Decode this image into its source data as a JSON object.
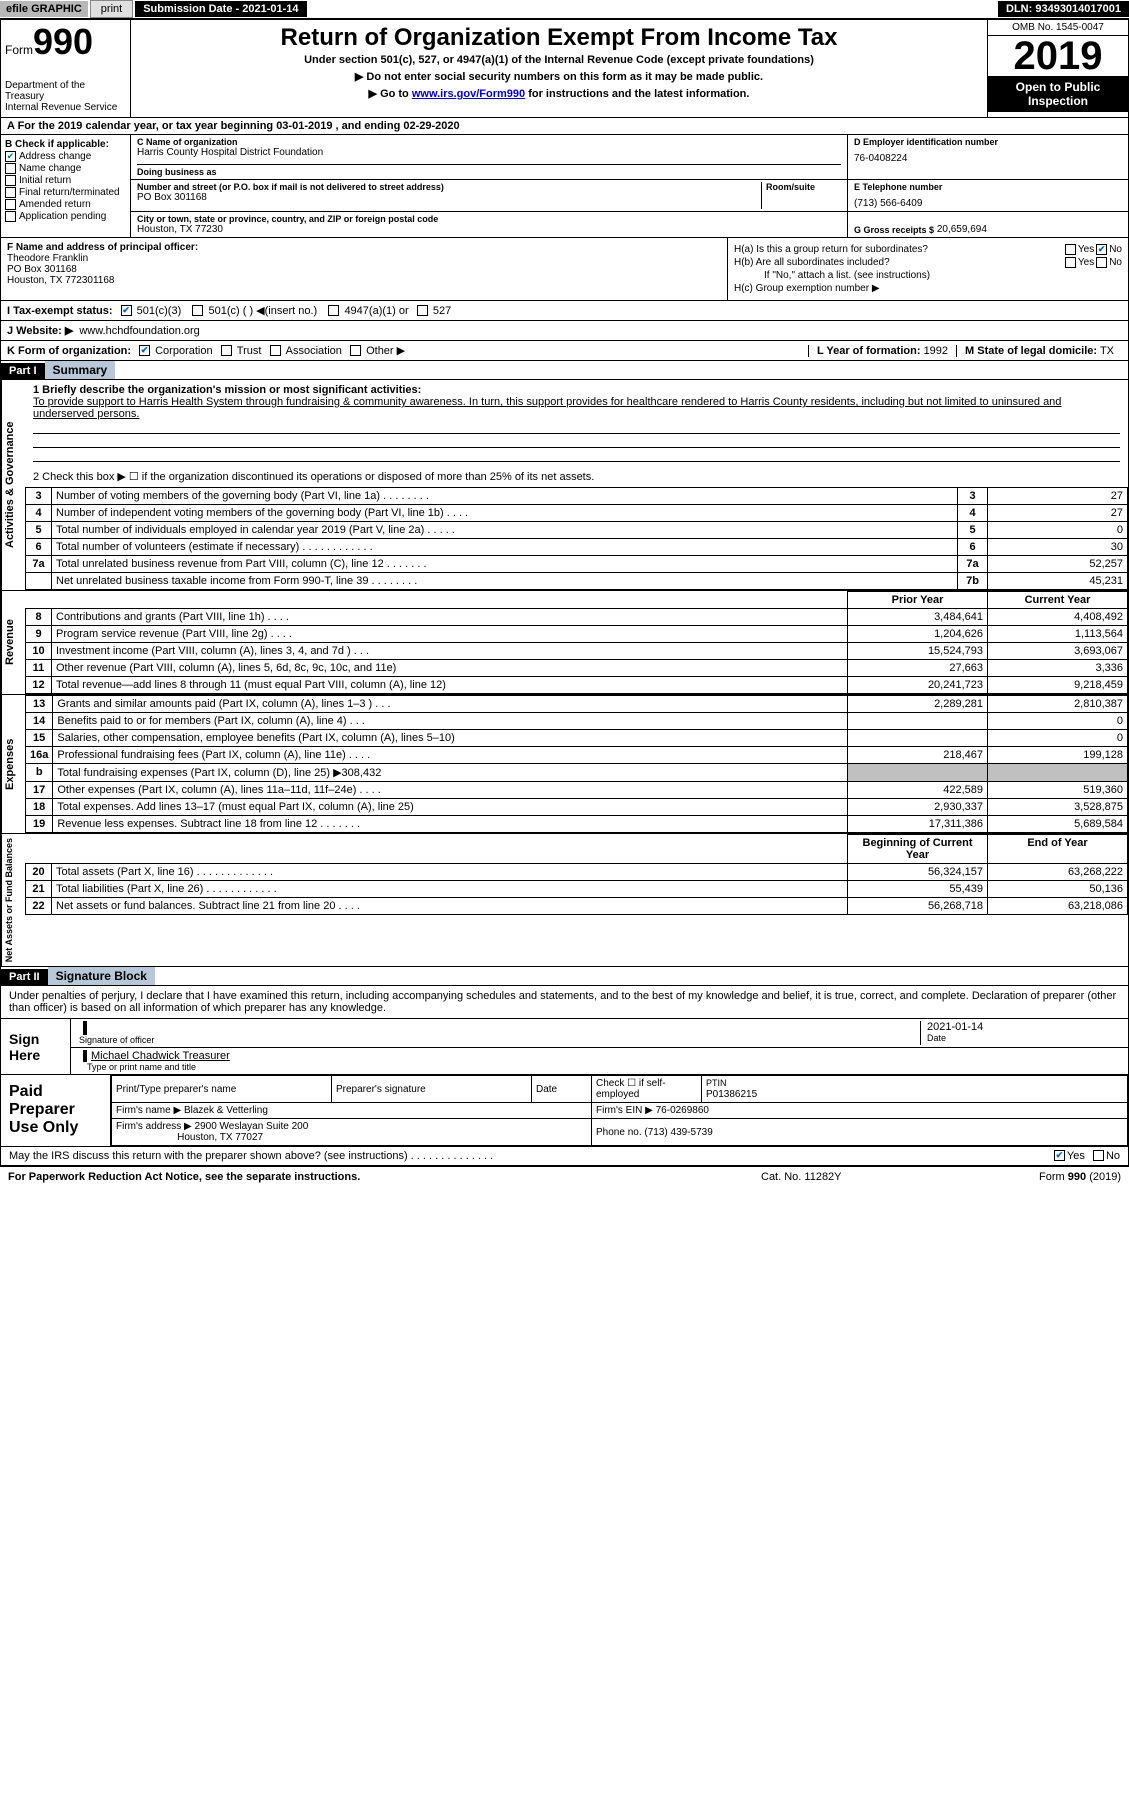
{
  "topbar": {
    "efile": "efile GRAPHIC",
    "print": "print",
    "subdate_label": "Submission Date - 2021-01-14",
    "dln": "DLN: 93493014017001"
  },
  "header": {
    "form_label": "Form",
    "form_num": "990",
    "dept": "Department of the Treasury\nInternal Revenue Service",
    "title": "Return of Organization Exempt From Income Tax",
    "subtitle": "Under section 501(c), 527, or 4947(a)(1) of the Internal Revenue Code (except private foundations)",
    "instr1": "▶ Do not enter social security numbers on this form as it may be made public.",
    "instr2_pre": "▶ Go to ",
    "instr2_link": "www.irs.gov/Form990",
    "instr2_post": " for instructions and the latest information.",
    "omb": "OMB No. 1545-0047",
    "year": "2019",
    "open": "Open to Public Inspection"
  },
  "period": "A For the 2019 calendar year, or tax year beginning 03-01-2019   , and ending 02-29-2020",
  "section_b": {
    "label": "B Check if applicable:",
    "items": [
      {
        "checked": true,
        "text": "Address change"
      },
      {
        "checked": false,
        "text": "Name change"
      },
      {
        "checked": false,
        "text": "Initial return"
      },
      {
        "checked": false,
        "text": "Final return/terminated"
      },
      {
        "checked": false,
        "text": "Amended return"
      },
      {
        "checked": false,
        "text": "Application pending"
      }
    ]
  },
  "section_c": {
    "name_label": "C Name of organization",
    "name": "Harris County Hospital District Foundation",
    "dba_label": "Doing business as",
    "dba": "",
    "addr_label": "Number and street (or P.O. box if mail is not delivered to street address)",
    "room_label": "Room/suite",
    "addr": "PO Box 301168",
    "city_label": "City or town, state or province, country, and ZIP or foreign postal code",
    "city": "Houston, TX  77230"
  },
  "section_d": {
    "label": "D Employer identification number",
    "value": "76-0408224"
  },
  "section_e": {
    "label": "E Telephone number",
    "value": "(713) 566-6409"
  },
  "section_g": {
    "label": "G Gross receipts $",
    "value": "20,659,694"
  },
  "section_f": {
    "label": "F  Name and address of principal officer:",
    "name": "Theodore Franklin",
    "addr1": "PO Box 301168",
    "addr2": "Houston, TX  772301168"
  },
  "section_h": {
    "ha": "H(a)  Is this a group return for subordinates?",
    "ha_no": true,
    "hb": "H(b)  Are all subordinates included?",
    "hb_note": "If \"No,\" attach a list. (see instructions)",
    "hc": "H(c)  Group exemption number ▶"
  },
  "tax_exempt": {
    "label": "I   Tax-exempt status:",
    "c3_checked": true,
    "opts": [
      "501(c)(3)",
      "501(c) (  ) ◀(insert no.)",
      "4947(a)(1) or",
      "527"
    ]
  },
  "website": {
    "label": "J   Website: ▶",
    "value": "www.hchdfoundation.org"
  },
  "section_k": {
    "label": "K Form of organization:",
    "corp_checked": true,
    "opts": [
      "Corporation",
      "Trust",
      "Association",
      "Other ▶"
    ]
  },
  "section_l": {
    "label": "L Year of formation:",
    "value": "1992"
  },
  "section_m": {
    "label": "M State of legal domicile:",
    "value": "TX"
  },
  "part1": {
    "hdr": "Part I",
    "title": "Summary",
    "line1_label": "1  Briefly describe the organization's mission or most significant activities:",
    "mission": "To provide support to Harris Health System through fundraising & community awareness. In turn, this support provides for healthcare rendered to Harris County residents, including but not limited to uninsured and underserved persons.",
    "line2": "2   Check this box ▶ ☐ if the organization discontinued its operations or disposed of more than 25% of its net assets.",
    "side_gov": "Activities & Governance",
    "side_rev": "Revenue",
    "side_exp": "Expenses",
    "side_net": "Net Assets or Fund Balances",
    "col_prior": "Prior Year",
    "col_current": "Current Year",
    "col_begin": "Beginning of Current Year",
    "col_end": "End of Year",
    "gov_lines": [
      {
        "n": "3",
        "text": "Number of voting members of the governing body (Part VI, line 1a)  .   .   .   .   .   .   .   .",
        "box": "3",
        "val": "27"
      },
      {
        "n": "4",
        "text": "Number of independent voting members of the governing body (Part VI, line 1b)  .   .   .   .",
        "box": "4",
        "val": "27"
      },
      {
        "n": "5",
        "text": "Total number of individuals employed in calendar year 2019 (Part V, line 2a)  .   .   .   .   .",
        "box": "5",
        "val": "0"
      },
      {
        "n": "6",
        "text": "Total number of volunteers (estimate if necessary)   .   .   .   .   .   .   .   .   .   .   .   .",
        "box": "6",
        "val": "30"
      },
      {
        "n": "7a",
        "text": "Total unrelated business revenue from Part VIII, column (C), line 12  .   .   .   .   .   .   .",
        "box": "7a",
        "val": "52,257"
      },
      {
        "n": "",
        "text": "Net unrelated business taxable income from Form 990-T, line 39  .   .   .   .   .   .   .   .",
        "box": "7b",
        "val": "45,231"
      }
    ],
    "rev_lines": [
      {
        "n": "8",
        "text": "Contributions and grants (Part VIII, line 1h)  .   .   .   .",
        "prior": "3,484,641",
        "curr": "4,408,492"
      },
      {
        "n": "9",
        "text": "Program service revenue (Part VIII, line 2g)   .   .   .   .",
        "prior": "1,204,626",
        "curr": "1,113,564"
      },
      {
        "n": "10",
        "text": "Investment income (Part VIII, column (A), lines 3, 4, and 7d )   .   .   .",
        "prior": "15,524,793",
        "curr": "3,693,067"
      },
      {
        "n": "11",
        "text": "Other revenue (Part VIII, column (A), lines 5, 6d, 8c, 9c, 10c, and 11e)",
        "prior": "27,663",
        "curr": "3,336"
      },
      {
        "n": "12",
        "text": "Total revenue—add lines 8 through 11 (must equal Part VIII, column (A), line 12)",
        "prior": "20,241,723",
        "curr": "9,218,459"
      }
    ],
    "exp_lines": [
      {
        "n": "13",
        "text": "Grants and similar amounts paid (Part IX, column (A), lines 1–3 )  .   .   .",
        "prior": "2,289,281",
        "curr": "2,810,387"
      },
      {
        "n": "14",
        "text": "Benefits paid to or for members (Part IX, column (A), line 4)  .   .   .",
        "prior": "",
        "curr": "0"
      },
      {
        "n": "15",
        "text": "Salaries, other compensation, employee benefits (Part IX, column (A), lines 5–10)",
        "prior": "",
        "curr": "0"
      },
      {
        "n": "16a",
        "text": "Professional fundraising fees (Part IX, column (A), line 11e)  .   .   .   .",
        "prior": "218,467",
        "curr": "199,128"
      },
      {
        "n": "b",
        "text": "Total fundraising expenses (Part IX, column (D), line 25) ▶308,432",
        "prior": "shaded",
        "curr": "shaded"
      },
      {
        "n": "17",
        "text": "Other expenses (Part IX, column (A), lines 11a–11d, 11f–24e)  .   .   .   .",
        "prior": "422,589",
        "curr": "519,360"
      },
      {
        "n": "18",
        "text": "Total expenses. Add lines 13–17 (must equal Part IX, column (A), line 25)",
        "prior": "2,930,337",
        "curr": "3,528,875"
      },
      {
        "n": "19",
        "text": "Revenue less expenses. Subtract line 18 from line 12  .   .   .   .   .   .   .",
        "prior": "17,311,386",
        "curr": "5,689,584"
      }
    ],
    "net_lines": [
      {
        "n": "20",
        "text": "Total assets (Part X, line 16)  .   .   .   .   .   .   .   .   .   .   .   .   .",
        "prior": "56,324,157",
        "curr": "63,268,222"
      },
      {
        "n": "21",
        "text": "Total liabilities (Part X, line 26)  .   .   .   .   .   .   .   .   .   .   .   .",
        "prior": "55,439",
        "curr": "50,136"
      },
      {
        "n": "22",
        "text": "Net assets or fund balances. Subtract line 21 from line 20  .   .   .   .",
        "prior": "56,268,718",
        "curr": "63,218,086"
      }
    ]
  },
  "part2": {
    "hdr": "Part II",
    "title": "Signature Block",
    "penalty": "Under penalties of perjury, I declare that I have examined this return, including accompanying schedules and statements, and to the best of my knowledge and belief, it is true, correct, and complete. Declaration of preparer (other than officer) is based on all information of which preparer has any knowledge.",
    "sign_here": "Sign Here",
    "sig_officer_label": "Signature of officer",
    "sig_date_label": "Date",
    "sig_date": "2021-01-14",
    "sig_name": "Michael Chadwick  Treasurer",
    "sig_name_label": "Type or print name and title",
    "paid_label": "Paid Preparer Use Only",
    "prep_name_label": "Print/Type preparer's name",
    "prep_sig_label": "Preparer's signature",
    "prep_date_label": "Date",
    "prep_check_label": "Check ☐ if self-employed",
    "ptin_label": "PTIN",
    "ptin": "P01386215",
    "firm_name_label": "Firm's name    ▶",
    "firm_name": "Blazek & Vetterling",
    "firm_ein_label": "Firm's EIN ▶",
    "firm_ein": "76-0269860",
    "firm_addr_label": "Firm's address ▶",
    "firm_addr1": "2900 Weslayan Suite 200",
    "firm_addr2": "Houston, TX  77027",
    "phone_label": "Phone no.",
    "phone": "(713) 439-5739",
    "discuss": "May the IRS discuss this return with the preparer shown above? (see instructions)   .   .   .   .   .   .   .   .   .   .   .   .   .   .",
    "discuss_yes": true
  },
  "footer": {
    "left": "For Paperwork Reduction Act Notice, see the separate instructions.",
    "mid": "Cat. No. 11282Y",
    "right": "Form 990 (2019)"
  },
  "colors": {
    "black": "#000000",
    "grey_btn": "#e0e0e0",
    "grey_bar": "#b8b8b8",
    "part_title_bg": "#b8c8d8",
    "link": "#0000cc",
    "check": "#0066cc",
    "shaded": "#c0c0c0"
  }
}
